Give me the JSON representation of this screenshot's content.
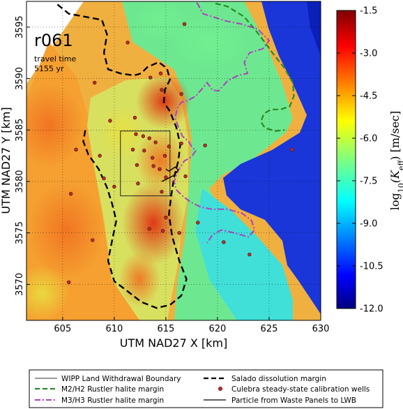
{
  "chart_data": {
    "type": "heatmap",
    "run_label": "r061",
    "travel_time_label": "travel time",
    "travel_time_value": "5155 yr",
    "xlabel": "UTM NAD27 X [km]",
    "ylabel": "UTM NAD27 Y [km]",
    "xlim": [
      601.5,
      630
    ],
    "ylim": [
      3566.5,
      3597.5
    ],
    "xticks": [
      605,
      610,
      615,
      620,
      625,
      630
    ],
    "yticks": [
      3570,
      3575,
      3580,
      3585,
      3590,
      3595
    ],
    "grid": true,
    "colorbar": {
      "label_base": "log",
      "label_sub": "10",
      "label_var": "(K",
      "label_eff": "eff",
      "label_unit": ") [m/sec]",
      "vmin": -12.0,
      "vmax": -1.5,
      "ticks": [
        "-1.5",
        "-3.0",
        "-4.5",
        "-6.0",
        "-7.5",
        "-9.0",
        "-10.5",
        "-12.0"
      ],
      "colormap": "jet"
    },
    "wipp_boundary": {
      "x": [
        610.6,
        615.4
      ],
      "y": [
        3578.6,
        3584.9
      ]
    },
    "wells": [
      [
        608.1,
        3589.6
      ],
      [
        613.5,
        3590.1
      ],
      [
        614.6,
        3588.9
      ],
      [
        616.5,
        3588.5
      ],
      [
        616.8,
        3595.3
      ],
      [
        611.3,
        3593.5
      ],
      [
        614.5,
        3590.5
      ],
      [
        612.0,
        3586.2
      ],
      [
        609.6,
        3585.9
      ],
      [
        612.1,
        3584.6
      ],
      [
        612.8,
        3584.4
      ],
      [
        613.4,
        3584.2
      ],
      [
        614.0,
        3583.8
      ],
      [
        615.3,
        3583.4
      ],
      [
        616.5,
        3583.7
      ],
      [
        618.8,
        3583.5
      ],
      [
        611.8,
        3583.1
      ],
      [
        612.9,
        3583.0
      ],
      [
        613.7,
        3582.3
      ],
      [
        614.9,
        3582.5
      ],
      [
        612.2,
        3581.6
      ],
      [
        613.8,
        3581.5
      ],
      [
        614.4,
        3581.2
      ],
      [
        615.0,
        3580.4
      ],
      [
        616.9,
        3580.5
      ],
      [
        612.3,
        3579.8
      ],
      [
        610.0,
        3579.5
      ],
      [
        608.6,
        3582.5
      ],
      [
        606.3,
        3583.1
      ],
      [
        605.8,
        3578.8
      ],
      [
        609.0,
        3580.3
      ],
      [
        614.6,
        3579.0
      ],
      [
        615.0,
        3576.5
      ],
      [
        614.7,
        3575.2
      ],
      [
        616.3,
        3575.0
      ],
      [
        618.1,
        3576.0
      ],
      [
        620.6,
        3574.1
      ],
      [
        623.1,
        3572.9
      ],
      [
        607.9,
        3574.3
      ],
      [
        605.6,
        3570.2
      ],
      [
        613.4,
        3575.4
      ],
      [
        627.2,
        3583.1
      ]
    ],
    "particle_path": {
      "x": [
        615.0,
        615.3,
        615.9,
        616.2,
        615.8,
        615.2,
        614.6
      ],
      "y": [
        3581.2,
        3581.0,
        3581.4,
        3581.1,
        3580.6,
        3580.3,
        3580.0
      ]
    },
    "salado_margin": {
      "x": [
        604.5,
        605.6,
        607.2,
        608.8,
        609.3,
        609.0,
        609.4,
        610.6,
        611.9,
        612.6,
        613.2,
        614.3,
        615.1,
        615.4,
        614.9,
        614.8,
        615.4,
        616.0,
        616.4,
        616.2,
        615.8,
        615.5,
        615.3,
        615.6,
        616.3,
        617.0,
        616.5,
        615.4,
        614.1,
        612.6,
        611.2,
        610.0,
        609.4,
        609.8,
        610.2,
        609.8,
        609.3,
        608.5,
        607.5,
        607.0,
        607.2
      ],
      "y": [
        3597.2,
        3596.3,
        3596.0,
        3595.7,
        3594.3,
        3592.5,
        3590.9,
        3590.5,
        3590.3,
        3590.5,
        3591.1,
        3591.6,
        3591.0,
        3589.9,
        3588.9,
        3587.7,
        3586.8,
        3585.3,
        3583.6,
        3582.0,
        3580.4,
        3578.5,
        3576.8,
        3574.7,
        3572.3,
        3570.5,
        3568.9,
        3568.0,
        3567.7,
        3568.3,
        3569.4,
        3570.3,
        3572.3,
        3574.3,
        3576.2,
        3577.8,
        3579.4,
        3581.2,
        3582.6,
        3583.9,
        3585.0
      ]
    },
    "m2h2_margin": {
      "x": [
        619.8,
        621.0,
        622.6,
        624.0,
        625.4,
        626.5,
        627.3,
        627.4,
        627.0,
        626.1,
        625.2,
        624.5,
        624.2,
        624.6,
        625.6,
        626.5
      ],
      "y": [
        3597.3,
        3597.0,
        3596.0,
        3594.3,
        3592.4,
        3591.0,
        3589.6,
        3588.3,
        3587.3,
        3587.0,
        3587.0,
        3586.6,
        3585.8,
        3585.2,
        3584.9,
        3585.0
      ]
    },
    "m3h3_margin": {
      "x": [
        618.0,
        618.6,
        620.8,
        622.3,
        623.9,
        625.0,
        624.4,
        623.1,
        622.6,
        622.9,
        622.0,
        621.0,
        620.1,
        619.5,
        619.0,
        618.5,
        617.9,
        617.2,
        616.5,
        616.1,
        615.9,
        616.2,
        616.6,
        617.2,
        617.5,
        617.9,
        617.5,
        616.8,
        616.2,
        615.8,
        616.0,
        616.6,
        617.4,
        618.4,
        619.5,
        621.0,
        622.4,
        623.3,
        623.6,
        623.0,
        622.0,
        620.4,
        619.5,
        619.0
      ],
      "y": [
        3597.4,
        3596.3,
        3595.6,
        3595.3,
        3594.8,
        3593.7,
        3592.9,
        3592.5,
        3591.6,
        3590.5,
        3590.3,
        3589.8,
        3588.8,
        3588.9,
        3589.6,
        3589.0,
        3588.3,
        3587.9,
        3587.7,
        3587.1,
        3586.2,
        3585.3,
        3584.4,
        3583.9,
        3583.4,
        3583.0,
        3582.4,
        3582.0,
        3581.1,
        3580.0,
        3579.2,
        3578.6,
        3578.0,
        3577.5,
        3577.3,
        3577.3,
        3576.9,
        3576.2,
        3575.3,
        3574.6,
        3574.9,
        3575.3,
        3574.8,
        3574.0
      ]
    },
    "legend": [
      {
        "label": "WIPP Land Withdrawal Boundary",
        "style": "thin-solid"
      },
      {
        "label": "Salado dissolution margin",
        "style": "black-dashed"
      },
      {
        "label": "M2/H2 Rustler halite margin",
        "style": "green-dashed"
      },
      {
        "label": "Culebra steady-state calibration wells",
        "style": "red-dot"
      },
      {
        "label": "M3/H3 Rustler halite margin",
        "style": "magenta-dashdot"
      },
      {
        "label": "Particle from Waste Panels to LWB",
        "style": "black-solid"
      }
    ],
    "legend_placement": "bottom",
    "colors": {
      "salado": "#000000",
      "m2h2": "#2a8a2a",
      "m3h3": "#b040c0",
      "well_fill": "#c0302a",
      "well_edge": "#5a1010",
      "basin_blue": "#1a36d8"
    }
  }
}
